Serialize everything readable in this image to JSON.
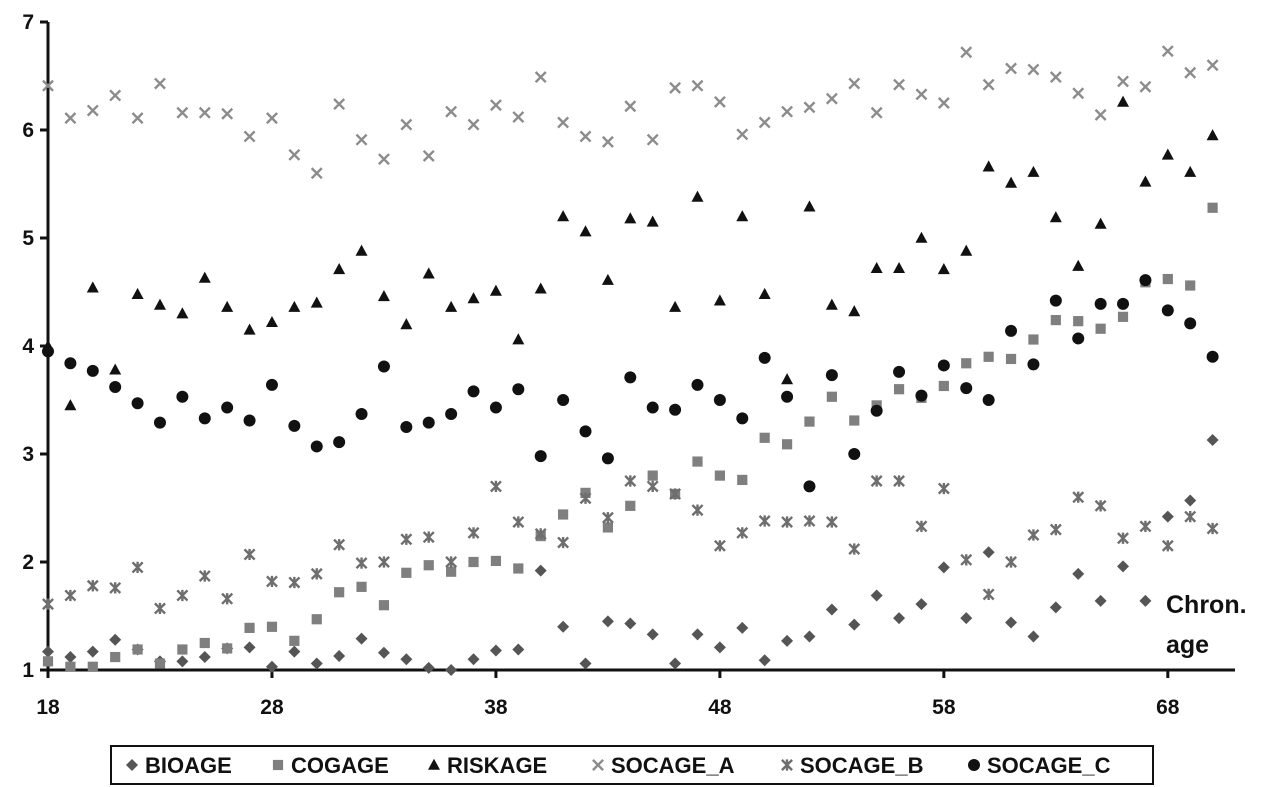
{
  "chart_data": {
    "type": "scatter",
    "xlabel": "Chron. age",
    "xlabel_lines": [
      "Chron.",
      "age"
    ],
    "x_ticks": [
      18,
      28,
      38,
      48,
      58,
      68
    ],
    "y_ticks": [
      1,
      2,
      3,
      4,
      5,
      6,
      7
    ],
    "xlim": [
      18,
      71
    ],
    "ylim": [
      1,
      7
    ],
    "grid": false,
    "legend_position": "bottom",
    "x": [
      18,
      19,
      20,
      21,
      22,
      23,
      24,
      25,
      26,
      27,
      28,
      29,
      30,
      31,
      32,
      33,
      34,
      35,
      36,
      37,
      38,
      39,
      40,
      41,
      42,
      43,
      44,
      45,
      46,
      47,
      48,
      49,
      50,
      51,
      52,
      53,
      54,
      55,
      56,
      57,
      58,
      59,
      60,
      61,
      62,
      63,
      64,
      65,
      66,
      67,
      68,
      69,
      70
    ],
    "series": [
      {
        "name": "BIOAGE",
        "marker": "diamond",
        "color": "#555555",
        "values": [
          1.17,
          1.12,
          1.17,
          1.28,
          1.19,
          1.08,
          1.08,
          1.12,
          1.2,
          1.21,
          1.03,
          1.17,
          1.06,
          1.13,
          1.29,
          1.16,
          1.1,
          1.02,
          1.0,
          1.1,
          1.18,
          1.19,
          1.92,
          1.4,
          1.06,
          1.45,
          1.43,
          1.33,
          1.06,
          1.33,
          1.21,
          1.39,
          1.09,
          1.27,
          1.31,
          1.56,
          1.42,
          1.69,
          1.48,
          1.61,
          1.95,
          1.48,
          2.09,
          1.44,
          1.31,
          1.58,
          1.89,
          1.64,
          1.96,
          1.64,
          2.42,
          2.57,
          3.13
        ]
      },
      {
        "name": "COGAGE",
        "marker": "square",
        "color": "#7f7f7f",
        "values": [
          1.08,
          1.03,
          1.03,
          1.12,
          1.19,
          1.06,
          1.19,
          1.25,
          1.2,
          1.39,
          1.4,
          1.27,
          1.47,
          1.72,
          1.77,
          1.6,
          1.9,
          1.97,
          1.91,
          2.0,
          2.01,
          1.94,
          2.24,
          2.44,
          2.64,
          2.32,
          2.52,
          2.8,
          2.63,
          2.93,
          2.8,
          2.76,
          3.15,
          3.09,
          3.3,
          3.53,
          3.31,
          3.45,
          3.6,
          3.52,
          3.63,
          3.84,
          3.9,
          3.88,
          4.06,
          4.24,
          4.23,
          4.16,
          4.27,
          4.59,
          4.62,
          4.56,
          5.28
        ]
      },
      {
        "name": "RISKAGE",
        "marker": "triangle",
        "color": "#111111",
        "values": [
          4.0,
          3.45,
          4.54,
          3.78,
          4.48,
          4.38,
          4.3,
          4.63,
          4.36,
          4.15,
          4.22,
          4.36,
          4.4,
          4.71,
          4.88,
          4.46,
          4.2,
          4.67,
          4.36,
          4.44,
          4.51,
          4.06,
          4.53,
          5.2,
          5.06,
          4.61,
          5.18,
          5.15,
          4.36,
          5.38,
          4.42,
          5.2,
          4.48,
          3.69,
          5.29,
          4.38,
          4.32,
          4.72,
          4.72,
          5.0,
          4.71,
          4.88,
          5.66,
          5.51,
          5.61,
          5.19,
          4.74,
          5.13,
          6.26,
          5.52,
          5.77,
          5.61,
          5.95
        ]
      },
      {
        "name": "SOCAGE_A",
        "marker": "x",
        "color": "#8c8c8c",
        "values": [
          6.41,
          6.11,
          6.18,
          6.32,
          6.11,
          6.43,
          6.16,
          6.16,
          6.15,
          5.94,
          6.11,
          5.77,
          5.6,
          6.24,
          5.91,
          5.73,
          6.05,
          5.76,
          6.17,
          6.05,
          6.23,
          6.12,
          6.49,
          6.07,
          5.94,
          5.89,
          6.22,
          5.91,
          6.39,
          6.41,
          6.26,
          5.96,
          6.07,
          6.17,
          6.21,
          6.29,
          6.43,
          6.16,
          6.42,
          6.33,
          6.25,
          6.72,
          6.42,
          6.57,
          6.56,
          6.49,
          6.34,
          6.14,
          6.45,
          6.4,
          6.73,
          6.53,
          6.6
        ]
      },
      {
        "name": "SOCAGE_B",
        "marker": "star",
        "color": "#6e6e6e",
        "values": [
          1.61,
          1.69,
          1.78,
          1.76,
          1.95,
          1.57,
          1.69,
          1.87,
          1.66,
          2.07,
          1.82,
          1.81,
          1.89,
          2.16,
          1.99,
          2.0,
          2.21,
          2.23,
          2.0,
          2.27,
          2.7,
          2.37,
          2.26,
          2.18,
          2.59,
          2.41,
          2.75,
          2.7,
          2.63,
          2.48,
          2.15,
          2.27,
          2.38,
          2.37,
          2.38,
          2.37,
          2.12,
          2.75,
          2.75,
          2.33,
          2.68,
          2.02,
          1.7,
          2.0,
          2.25,
          2.3,
          2.6,
          2.52,
          2.22,
          2.33,
          2.15,
          2.42,
          2.31
        ]
      },
      {
        "name": "SOCAGE_C",
        "marker": "circle",
        "color": "#111111",
        "values": [
          3.95,
          3.84,
          3.77,
          3.62,
          3.47,
          3.29,
          3.53,
          3.33,
          3.43,
          3.31,
          3.64,
          3.26,
          3.07,
          3.11,
          3.37,
          3.81,
          3.25,
          3.29,
          3.37,
          3.58,
          3.43,
          3.6,
          2.98,
          3.5,
          3.21,
          2.96,
          3.71,
          3.43,
          3.41,
          3.64,
          3.5,
          3.33,
          3.89,
          3.53,
          2.7,
          3.73,
          3.0,
          3.4,
          3.76,
          3.54,
          3.82,
          3.61,
          3.5,
          4.14,
          3.83,
          4.42,
          4.07,
          4.39,
          4.39,
          4.61,
          4.33,
          4.21,
          3.9
        ]
      }
    ]
  }
}
